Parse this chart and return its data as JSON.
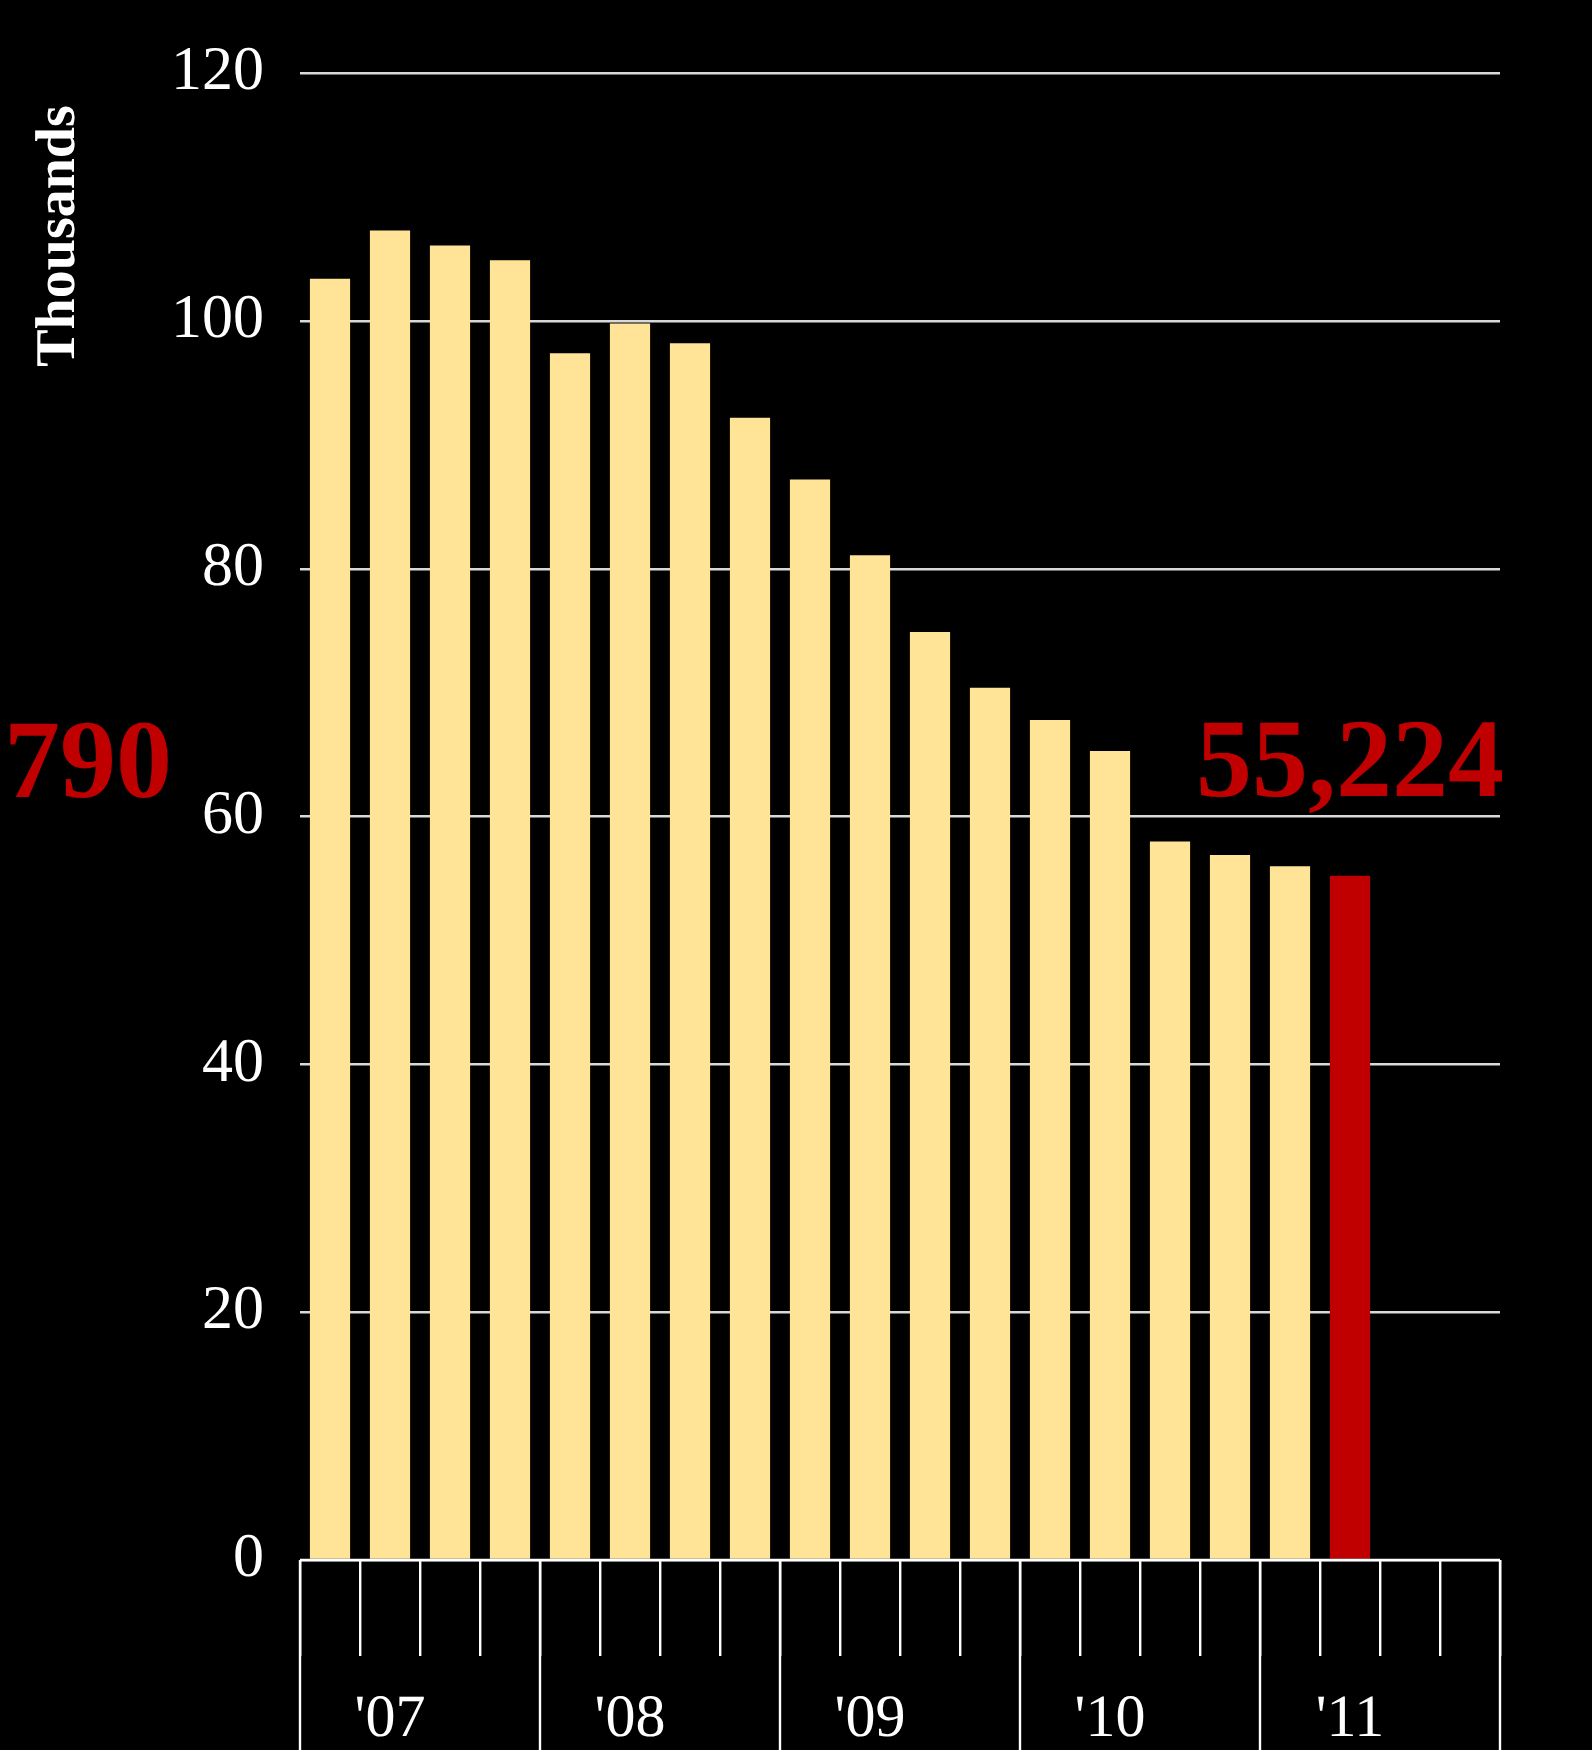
{
  "chart_data": {
    "type": "bar",
    "ylabel": "Thousands",
    "categories": [
      null,
      "'07",
      null,
      null,
      null,
      "'08",
      null,
      null,
      null,
      "'09",
      null,
      null,
      null,
      "'10",
      null,
      null,
      null,
      "'11",
      null,
      null
    ],
    "values": [
      103.4,
      107.3,
      106.1,
      104.9,
      97.4,
      99.8,
      98.2,
      92.2,
      87.2,
      81.1,
      74.9,
      70.4,
      67.8,
      65.3,
      58.0,
      56.9,
      56.0,
      55.224,
      null,
      null
    ],
    "colors": [
      "#ffe396",
      "#ffe396",
      "#ffe396",
      "#ffe396",
      "#ffe396",
      "#ffe396",
      "#ffe396",
      "#ffe396",
      "#ffe396",
      "#ffe396",
      "#ffe396",
      "#ffe396",
      "#ffe396",
      "#ffe396",
      "#ffe396",
      "#ffe396",
      "#ffe396",
      "#c00000",
      "#ffe396",
      "#ffe396"
    ],
    "annotations": [
      {
        "text": "55,224",
        "y": 55.224
      },
      "790"
    ],
    "ylim": [
      0,
      120
    ],
    "yticks": [
      0,
      20,
      40,
      60,
      80,
      100,
      120
    ],
    "grid": "y",
    "legend": false
  }
}
